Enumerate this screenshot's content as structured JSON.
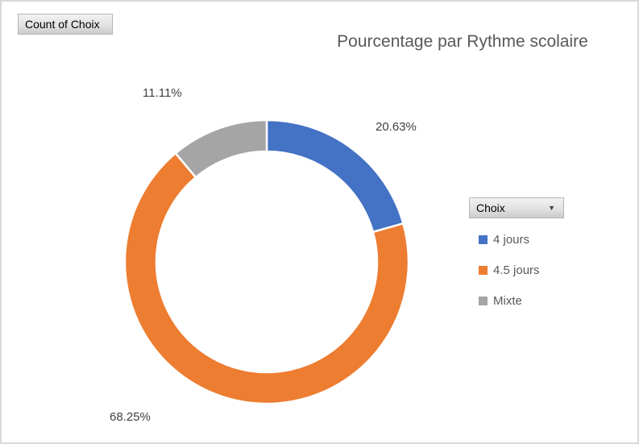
{
  "pivot_buttons": {
    "count_button": "Count of Choix",
    "legend_field_button": "Choix"
  },
  "icons": {
    "dropdown": "▼"
  },
  "chart_data": {
    "type": "doughnut",
    "title": "Pourcentage par Rythme scolaire",
    "categories": [
      "4 jours",
      "4.5 jours",
      "Mixte"
    ],
    "values": [
      20.63,
      68.25,
      11.11
    ],
    "labels": [
      "20.63%",
      "68.25%",
      "11.11%"
    ],
    "colors": [
      "#4472C4",
      "#ED7D31",
      "#A5A5A5"
    ],
    "hole_ratio": 0.78,
    "start_angle_deg": 0,
    "direction": "clockwise",
    "legend_position": "right",
    "label_color": "#404040",
    "title_color": "#595959"
  }
}
